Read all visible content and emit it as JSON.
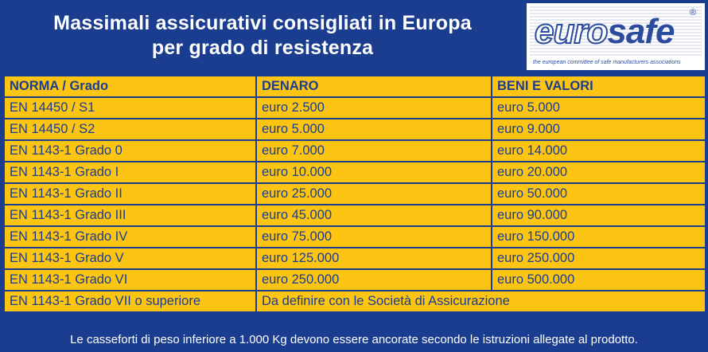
{
  "title": {
    "line1": "Massimali assicurativi consigliati in Europa",
    "line2": "per grado di resistenza"
  },
  "logo": {
    "word_part1": "euro",
    "word_part2": "safe",
    "registered": "®",
    "tagline": "the european committee of safe manufacturers associations"
  },
  "table": {
    "headers": [
      "NORMA / Grado",
      "DENARO",
      "BENI E VALORI"
    ],
    "rows": [
      [
        "EN 14450 / S1",
        "euro 2.500",
        "euro 5.000"
      ],
      [
        "EN 14450 / S2",
        "euro 5.000",
        "euro 9.000"
      ],
      [
        "EN 1143-1 Grado 0",
        "euro 7.000",
        "euro 14.000"
      ],
      [
        "EN 1143-1 Grado I",
        "euro 10.000",
        "euro 20.000"
      ],
      [
        "EN 1143-1 Grado II",
        "euro 25.000",
        "euro 50.000"
      ],
      [
        "EN 1143-1 Grado III",
        "euro 45.000",
        "euro 90.000"
      ],
      [
        "EN 1143-1 Grado IV",
        "euro 75.000",
        "euro 150.000"
      ],
      [
        "EN 1143-1 Grado V",
        "euro 125.000",
        "euro 250.000"
      ],
      [
        "EN 1143-1 Grado VI",
        "euro 250.000",
        "euro 500.000"
      ]
    ],
    "last_row": {
      "norma": "EN 1143-1 Grado VII o superiore",
      "note": "Da definire con le Società di Assicurazione"
    }
  },
  "footer": "Le casseforti di peso inferiore a 1.000 Kg devono essere ancorate secondo le istruzioni allegate al prodotto.",
  "colors": {
    "background": "#1a3d8f",
    "cell": "#fdc513",
    "text": "#1a3d8f"
  }
}
